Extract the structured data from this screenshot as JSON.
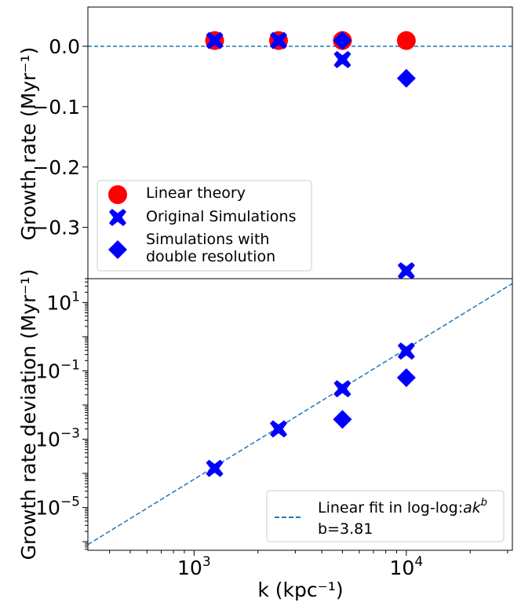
{
  "chart_data": [
    {
      "type": "scatter",
      "panel": "top",
      "xscale": "log",
      "xlim": [
        316,
        31600
      ],
      "ylim": [
        -0.385,
        0.065
      ],
      "ylabel": "Growth rate (Myr⁻¹)",
      "yticks": [
        0.0,
        -0.1,
        -0.2,
        -0.3
      ],
      "ytick_labels": [
        "0.0",
        "−0.1",
        "−0.2",
        "−0.3"
      ],
      "xticks": [
        1000,
        10000
      ],
      "xtick_base": "10",
      "xtick_exponents": [
        "3",
        "4"
      ],
      "hline": 0.0,
      "series": [
        {
          "name": "Linear theory",
          "marker": "circle",
          "color": "#ff0000",
          "x": [
            1250,
            2500,
            5000,
            10000
          ],
          "y": [
            0.0095,
            0.0095,
            0.0095,
            0.0095
          ]
        },
        {
          "name": "Original Simulations",
          "marker": "x",
          "color": "#0000ff",
          "x": [
            1250,
            2500,
            5000,
            10000
          ],
          "y": [
            0.0095,
            0.0095,
            -0.022,
            -0.372
          ]
        },
        {
          "name": "Simulations with double resolution",
          "marker": "diamond",
          "color": "#0000ff",
          "x": [
            5000,
            10000
          ],
          "y": [
            0.0095,
            -0.053
          ]
        }
      ],
      "legend": {
        "position": "lower-left",
        "entries": [
          {
            "label_lines": [
              "Linear theory"
            ]
          },
          {
            "label_lines": [
              "Original Simulations"
            ]
          },
          {
            "label_lines": [
              "Simulations with",
              "double resolution"
            ]
          }
        ]
      }
    },
    {
      "type": "scatter",
      "panel": "bottom",
      "xscale": "log",
      "yscale": "log",
      "xlim": [
        316,
        31600
      ],
      "ylim": [
        5.6e-07,
        50
      ],
      "xlabel": "k (kpc⁻¹)",
      "ylabel": "Growth rate deviation (Myr⁻¹)",
      "xticks": [
        1000,
        10000
      ],
      "xtick_base": "10",
      "xtick_exponents": [
        "3",
        "4"
      ],
      "yticks": [
        1e-05,
        0.001,
        0.1,
        10
      ],
      "ytick_base": "10",
      "ytick_exponents": [
        "−5",
        "−3",
        "−1",
        "1"
      ],
      "series": [
        {
          "name": "Original Simulations",
          "marker": "x",
          "color": "#0000ff",
          "x": [
            1250,
            2500,
            5000,
            10000
          ],
          "y": [
            0.00014,
            0.002,
            0.03,
            0.38
          ]
        },
        {
          "name": "Simulations with double resolution",
          "marker": "diamond",
          "color": "#0000ff",
          "x": [
            5000,
            10000
          ],
          "y": [
            0.0038,
            0.063
          ]
        }
      ],
      "fit": {
        "x": [
          316,
          31600
        ],
        "y": [
          8.2e-07,
          36
        ],
        "b": 3.81
      },
      "legend": {
        "position": "lower-right",
        "entries": [
          {
            "label": "Linear fit in log-log:",
            "math": "ak",
            "math_sup": "b",
            "second_line": "b=3.81"
          }
        ]
      }
    }
  ]
}
